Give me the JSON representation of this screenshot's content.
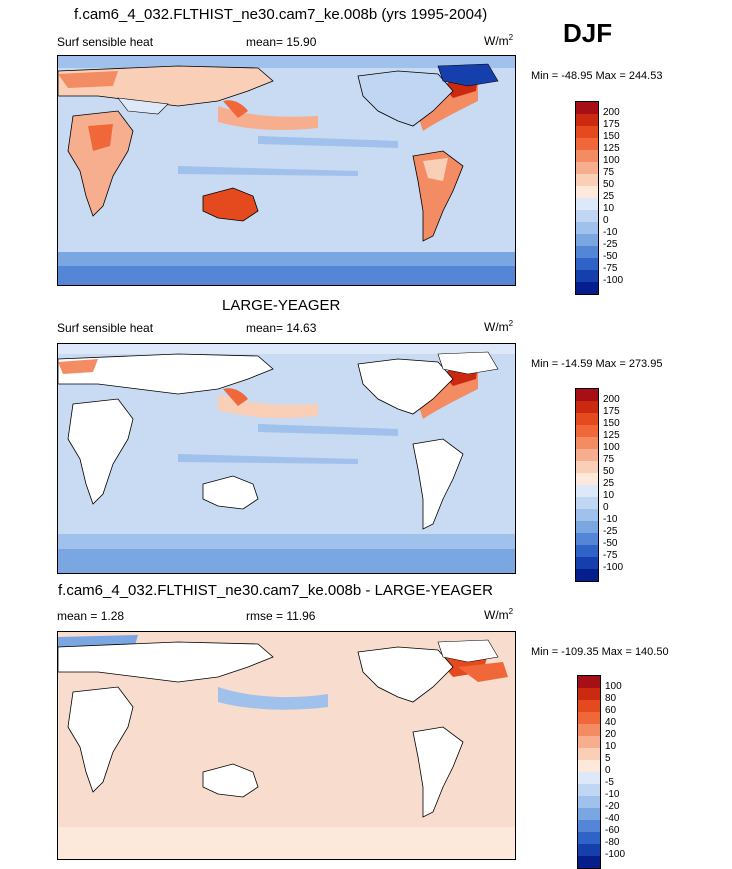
{
  "corner": {
    "season": "DJF"
  },
  "panels": [
    {
      "title": "f.cam6_4_032.FLTHIST_ne30.cam7_ke.008b (yrs 1995-2004)",
      "left_label": "Surf sensible heat",
      "stat_label": "mean=  15.90",
      "units": "W/m",
      "units_sup": "2",
      "minmax": "Min = -48.95 Max = 244.53",
      "levels": [
        "200",
        "175",
        "150",
        "125",
        "100",
        "75",
        "50",
        "25",
        "10",
        "0",
        "-10",
        "-25",
        "-50",
        "-75",
        "-100"
      ],
      "colors": [
        "#a50f15",
        "#cb2a10",
        "#e44a1e",
        "#f0673a",
        "#f38b63",
        "#f6ae8e",
        "#f9cfb7",
        "#fde9dc",
        "#dde9f8",
        "#c0d6f3",
        "#9fc1ec",
        "#7aa6e2",
        "#5586d6",
        "#2f63c7",
        "#143fad",
        "#061e8c"
      ],
      "ocean_fill": "#c9dbf3"
    },
    {
      "title": "LARGE-YEAGER",
      "left_label": "Surf sensible heat",
      "stat_label": "mean=  14.63",
      "units": "W/m",
      "units_sup": "2",
      "minmax": "Min = -14.59 Max = 273.95",
      "levels": [
        "200",
        "175",
        "150",
        "125",
        "100",
        "75",
        "50",
        "25",
        "10",
        "0",
        "-10",
        "-25",
        "-50",
        "-75",
        "-100"
      ],
      "colors": [
        "#a50f15",
        "#cb2a10",
        "#e44a1e",
        "#f0673a",
        "#f38b63",
        "#f6ae8e",
        "#f9cfb7",
        "#fde9dc",
        "#dde9f8",
        "#c0d6f3",
        "#9fc1ec",
        "#7aa6e2",
        "#5586d6",
        "#2f63c7",
        "#143fad",
        "#061e8c"
      ],
      "ocean_fill": "#c9dbf3"
    },
    {
      "title": "f.cam6_4_032.FLTHIST_ne30.cam7_ke.008b - LARGE-YEAGER",
      "left_label": "mean =   1.28",
      "stat_label": "rmse =  11.96",
      "units": "W/m",
      "units_sup": "2",
      "minmax": "Min = -109.35 Max = 140.50",
      "levels": [
        "100",
        "80",
        "60",
        "40",
        "20",
        "10",
        "5",
        "0",
        "-5",
        "-10",
        "-20",
        "-40",
        "-60",
        "-80",
        "-100"
      ],
      "colors": [
        "#a50f15",
        "#cb2a10",
        "#e44a1e",
        "#f0673a",
        "#f38b63",
        "#f6ae8e",
        "#f9cfb7",
        "#fde9dc",
        "#dde9f8",
        "#c0d6f3",
        "#9fc1ec",
        "#7aa6e2",
        "#5586d6",
        "#2f63c7",
        "#143fad",
        "#061e8c"
      ],
      "ocean_fill": "#f8dccd"
    }
  ],
  "chart_data": [
    {
      "type": "heatmap",
      "title": "f.cam6_4_032.FLTHIST_ne30.cam7_ke.008b (yrs 1995-2004)",
      "variable": "Surf sensible heat",
      "mean": 15.9,
      "min": -48.95,
      "max": 244.53,
      "units": "W/m2",
      "season": "DJF",
      "contour_levels": [
        -100,
        -75,
        -50,
        -25,
        -10,
        0,
        10,
        25,
        50,
        75,
        100,
        125,
        150,
        175,
        200
      ]
    },
    {
      "type": "heatmap",
      "title": "LARGE-YEAGER",
      "variable": "Surf sensible heat",
      "mean": 14.63,
      "min": -14.59,
      "max": 273.95,
      "units": "W/m2",
      "season": "DJF",
      "contour_levels": [
        -100,
        -75,
        -50,
        -25,
        -10,
        0,
        10,
        25,
        50,
        75,
        100,
        125,
        150,
        175,
        200
      ]
    },
    {
      "type": "heatmap",
      "title": "f.cam6_4_032.FLTHIST_ne30.cam7_ke.008b - LARGE-YEAGER",
      "mean": 1.28,
      "rmse": 11.96,
      "min": -109.35,
      "max": 140.5,
      "units": "W/m2",
      "season": "DJF",
      "contour_levels": [
        -100,
        -80,
        -60,
        -40,
        -20,
        -10,
        -5,
        0,
        5,
        10,
        20,
        40,
        60,
        80,
        100
      ]
    }
  ]
}
